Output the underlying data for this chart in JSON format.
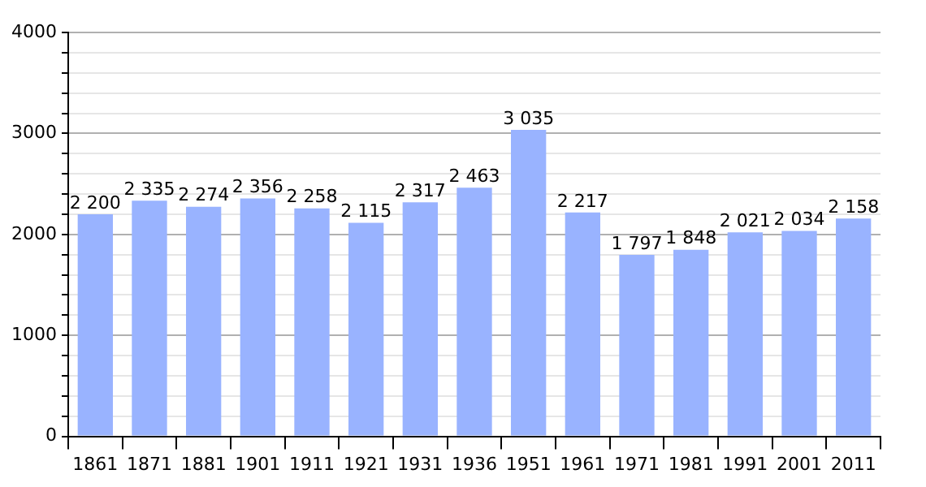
{
  "chart_data": {
    "type": "bar",
    "categories": [
      "1861",
      "1871",
      "1881",
      "1901",
      "1911",
      "1921",
      "1931",
      "1936",
      "1951",
      "1961",
      "1971",
      "1981",
      "1991",
      "2001",
      "2011"
    ],
    "values": [
      2200,
      2335,
      2274,
      2356,
      2258,
      2115,
      2317,
      2463,
      3035,
      2217,
      1797,
      1848,
      2021,
      2034,
      2158
    ],
    "value_labels": [
      "2 200",
      "2 335",
      "2 274",
      "2 356",
      "2 258",
      "2 115",
      "2 317",
      "2 463",
      "3 035",
      "2 217",
      "1 797",
      "1 848",
      "2 021",
      "2 034",
      "2 158"
    ],
    "color": "#99b3ff",
    "ylim": [
      0,
      4000
    ],
    "yticks": [
      0,
      {
        "value": 200,
        "label": null
      },
      {
        "value": 400,
        "label": null
      },
      {
        "value": 600,
        "label": null
      },
      {
        "value": 800,
        "label": null
      },
      1000,
      {
        "value": 1200,
        "label": null
      },
      {
        "value": 1400,
        "label": null
      },
      {
        "value": 1600,
        "label": null
      },
      {
        "value": 1800,
        "label": null
      },
      2000,
      {
        "value": 2200,
        "label": null
      },
      {
        "value": 2400,
        "label": null
      },
      {
        "value": 2600,
        "label": null
      },
      {
        "value": 2800,
        "label": null
      },
      3000,
      {
        "value": 3200,
        "label": null
      },
      {
        "value": 3400,
        "label": null
      },
      {
        "value": 3600,
        "label": null
      },
      {
        "value": 3800,
        "label": null
      },
      4000
    ],
    "grid": true
  }
}
